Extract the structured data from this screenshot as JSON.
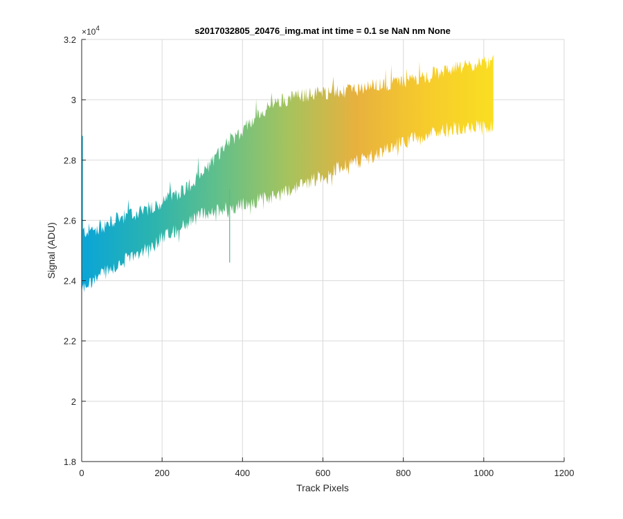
{
  "chart_data": {
    "type": "area",
    "title": "s2017032805_20476_img.mat int time = 0.1 se  NaN nm None",
    "xlabel": "Track Pixels",
    "ylabel": "Signal (ADU)",
    "y_exponent_base": "×10",
    "y_exponent_power": "4",
    "xlim": [
      0,
      1200
    ],
    "ylim": [
      18000,
      32000
    ],
    "x_ticks": [
      0,
      200,
      400,
      600,
      800,
      1000,
      1200
    ],
    "x_tick_labels": [
      "0",
      "200",
      "400",
      "600",
      "800",
      "1000",
      "1200"
    ],
    "y_ticks": [
      18000,
      20000,
      22000,
      24000,
      26000,
      28000,
      30000,
      32000
    ],
    "y_tick_labels": [
      "1.8",
      "2",
      "2.2",
      "2.4",
      "2.6",
      "2.8",
      "3",
      "3.2"
    ],
    "grid": true,
    "colormap": [
      "#0aa5d8",
      "#2ab3b0",
      "#62c08a",
      "#a5c35e",
      "#e8b13e",
      "#f6cb2c",
      "#fade22"
    ],
    "series": [
      {
        "x": [
          0,
          50,
          100,
          150,
          200,
          250,
          300,
          350,
          400,
          450,
          500,
          550,
          600,
          650,
          700,
          750,
          800,
          850,
          900,
          950,
          1000,
          1024
        ],
        "upper": [
          25600,
          25800,
          26100,
          26300,
          26600,
          27000,
          27500,
          28400,
          29000,
          29600,
          30000,
          30150,
          30250,
          30250,
          30400,
          30500,
          30650,
          30750,
          30950,
          31100,
          31200,
          31250
        ],
        "lower": [
          23700,
          24200,
          24600,
          25000,
          25400,
          25800,
          26200,
          26400,
          26500,
          26700,
          26900,
          27200,
          27500,
          27800,
          28000,
          28300,
          28600,
          28800,
          29000,
          29100,
          29150,
          29150
        ]
      }
    ],
    "outlier_spikes": [
      {
        "x": 2,
        "y": 28800
      },
      {
        "x": 368,
        "y": 24600
      }
    ]
  }
}
